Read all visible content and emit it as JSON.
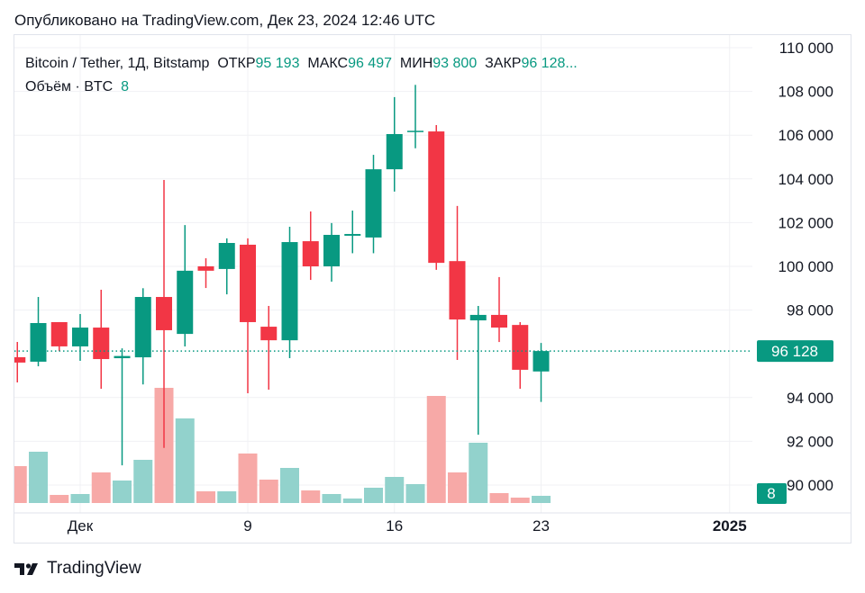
{
  "published": "Опубликовано на TradingView.com, Дек 23, 2024 12:46 UTC",
  "legend": {
    "symbol": "Bitcoin / Tether, 1Д, Bitstamp",
    "open_label": "ОТКР",
    "open": "95 193",
    "high_label": "МАКС",
    "high": "96 497",
    "low_label": "МИН",
    "low": "93 800",
    "close_label": "ЗАКР",
    "close": "96 128...",
    "volume_label": "Объём · BTC",
    "volume": "8"
  },
  "logo": "TradingView",
  "colors": {
    "up": "#089981",
    "down": "#f23645",
    "up_vol": "#92d2cc",
    "down_vol": "#f7a9a7"
  },
  "chart_data": {
    "type": "candlestick",
    "y_ticks": [
      "110 000",
      "108 000",
      "106 000",
      "104 000",
      "102 000",
      "100 000",
      "98 000",
      "94 000",
      "92 000",
      "90 000"
    ],
    "ylim": [
      89200,
      110600
    ],
    "x_ticks": [
      {
        "label": "Дек",
        "date": "2024-12-01"
      },
      {
        "label": "9",
        "date": "2024-12-09"
      },
      {
        "label": "16",
        "date": "2024-12-16"
      },
      {
        "label": "23",
        "date": "2024-12-23"
      },
      {
        "label": "2025",
        "date": "2025-01-01",
        "bold": true
      }
    ],
    "last_price": 96128,
    "last_price_label": "96 128",
    "last_volume_label": "8",
    "grid": true,
    "candles": [
      {
        "date": "2024-11-28",
        "o": 95844,
        "h": 96543,
        "l": 94691,
        "c": 95600,
        "v": 41
      },
      {
        "date": "2024-11-29",
        "o": 95640,
        "h": 98600,
        "l": 95430,
        "c": 97407,
        "v": 57
      },
      {
        "date": "2024-11-30",
        "o": 97450,
        "h": 97450,
        "l": 96130,
        "c": 96340,
        "v": 9
      },
      {
        "date": "2024-12-01",
        "o": 96340,
        "h": 97820,
        "l": 95680,
        "c": 97200,
        "v": 10
      },
      {
        "date": "2024-12-02",
        "o": 97200,
        "h": 98930,
        "l": 94400,
        "c": 95760,
        "v": 34
      },
      {
        "date": "2024-12-03",
        "o": 95800,
        "h": 96250,
        "l": 90900,
        "c": 95900,
        "v": 25
      },
      {
        "date": "2024-12-04",
        "o": 95840,
        "h": 99000,
        "l": 94600,
        "c": 98600,
        "v": 48
      },
      {
        "date": "2024-12-05",
        "o": 98600,
        "h": 103950,
        "l": 91700,
        "c": 97080,
        "v": 128
      },
      {
        "date": "2024-12-06",
        "o": 96910,
        "h": 101890,
        "l": 96340,
        "c": 99800,
        "v": 94
      },
      {
        "date": "2024-12-07",
        "o": 100000,
        "h": 100370,
        "l": 99010,
        "c": 99800,
        "v": 13
      },
      {
        "date": "2024-12-08",
        "o": 99880,
        "h": 101280,
        "l": 98720,
        "c": 101070,
        "v": 13
      },
      {
        "date": "2024-12-09",
        "o": 100990,
        "h": 101280,
        "l": 94200,
        "c": 97450,
        "v": 55
      },
      {
        "date": "2024-12-10",
        "o": 97240,
        "h": 98190,
        "l": 94360,
        "c": 96620,
        "v": 26
      },
      {
        "date": "2024-12-11",
        "o": 96620,
        "h": 101810,
        "l": 95800,
        "c": 101110,
        "v": 39
      },
      {
        "date": "2024-12-12",
        "o": 101150,
        "h": 102510,
        "l": 99380,
        "c": 100000,
        "v": 14
      },
      {
        "date": "2024-12-13",
        "o": 100000,
        "h": 101980,
        "l": 99300,
        "c": 101440,
        "v": 10
      },
      {
        "date": "2024-12-14",
        "o": 101400,
        "h": 102550,
        "l": 100600,
        "c": 101480,
        "v": 5
      },
      {
        "date": "2024-12-15",
        "o": 101320,
        "h": 105100,
        "l": 100600,
        "c": 104440,
        "v": 17
      },
      {
        "date": "2024-12-16",
        "o": 104440,
        "h": 107740,
        "l": 103420,
        "c": 106050,
        "v": 29
      },
      {
        "date": "2024-12-17",
        "o": 106150,
        "h": 108300,
        "l": 105400,
        "c": 106200,
        "v": 21
      },
      {
        "date": "2024-12-18",
        "o": 106170,
        "h": 106460,
        "l": 99840,
        "c": 100160,
        "v": 119
      },
      {
        "date": "2024-12-19",
        "o": 100240,
        "h": 102760,
        "l": 95720,
        "c": 97570,
        "v": 34
      },
      {
        "date": "2024-12-20",
        "o": 97530,
        "h": 98190,
        "l": 92300,
        "c": 97780,
        "v": 67
      },
      {
        "date": "2024-12-21",
        "o": 97780,
        "h": 99510,
        "l": 96540,
        "c": 97200,
        "v": 11
      },
      {
        "date": "2024-12-22",
        "o": 97320,
        "h": 97450,
        "l": 94400,
        "c": 95270,
        "v": 6
      },
      {
        "date": "2024-12-23",
        "o": 95193,
        "h": 96497,
        "l": 93800,
        "c": 96128,
        "v": 8
      }
    ]
  }
}
